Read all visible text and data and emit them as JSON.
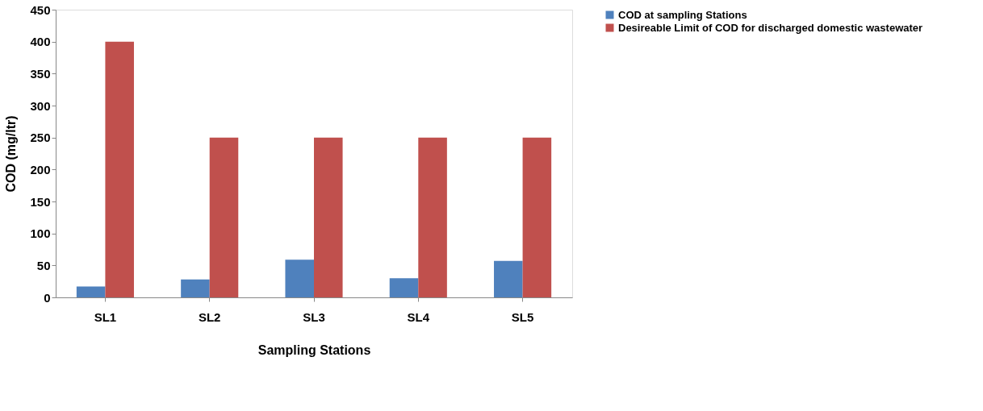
{
  "chart_data": {
    "type": "bar",
    "xlabel": "Sampling Stations",
    "ylabel": "COD (mg/ltr)",
    "categories": [
      "SL1",
      "SL2",
      "SL3",
      "SL4",
      "SL5"
    ],
    "series": [
      {
        "name": "COD at sampling Stations",
        "color": "#4f81bd",
        "values": [
          17,
          28,
          59,
          30,
          57
        ]
      },
      {
        "name": "Desireable Limit of COD for discharged domestic wastewater",
        "color": "#c0504d",
        "values": [
          400,
          250,
          250,
          250,
          250
        ]
      }
    ],
    "ylim": [
      0,
      450
    ],
    "yticks": [
      0,
      50,
      100,
      150,
      200,
      250,
      300,
      350,
      400,
      450
    ],
    "grid": false,
    "legend": "right"
  }
}
